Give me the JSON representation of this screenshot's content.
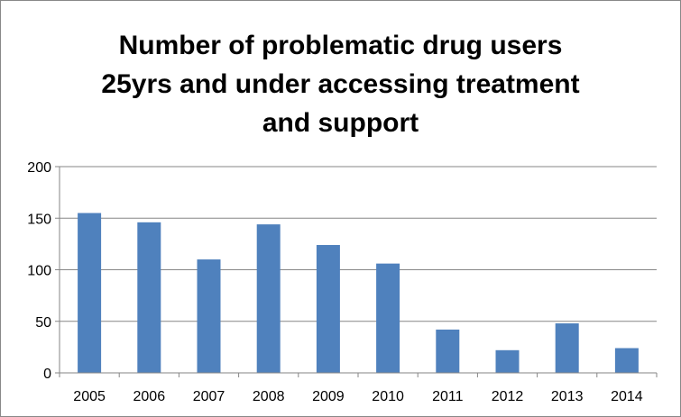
{
  "chart_data": {
    "type": "bar",
    "title_lines": [
      "Number of problematic drug users",
      "25yrs and under accessing treatment",
      "and support"
    ],
    "categories": [
      "2005",
      "2006",
      "2007",
      "2008",
      "2009",
      "2010",
      "2011",
      "2012",
      "2013",
      "2014"
    ],
    "values": [
      155,
      146,
      110,
      144,
      124,
      106,
      42,
      22,
      48,
      24
    ],
    "ylim": [
      0,
      200
    ],
    "yticks": [
      0,
      50,
      100,
      150,
      200
    ],
    "grid": true,
    "legend": "none",
    "colors": {
      "bar": "#4F81BD",
      "grid": "#868686",
      "axis": "#868686"
    }
  }
}
